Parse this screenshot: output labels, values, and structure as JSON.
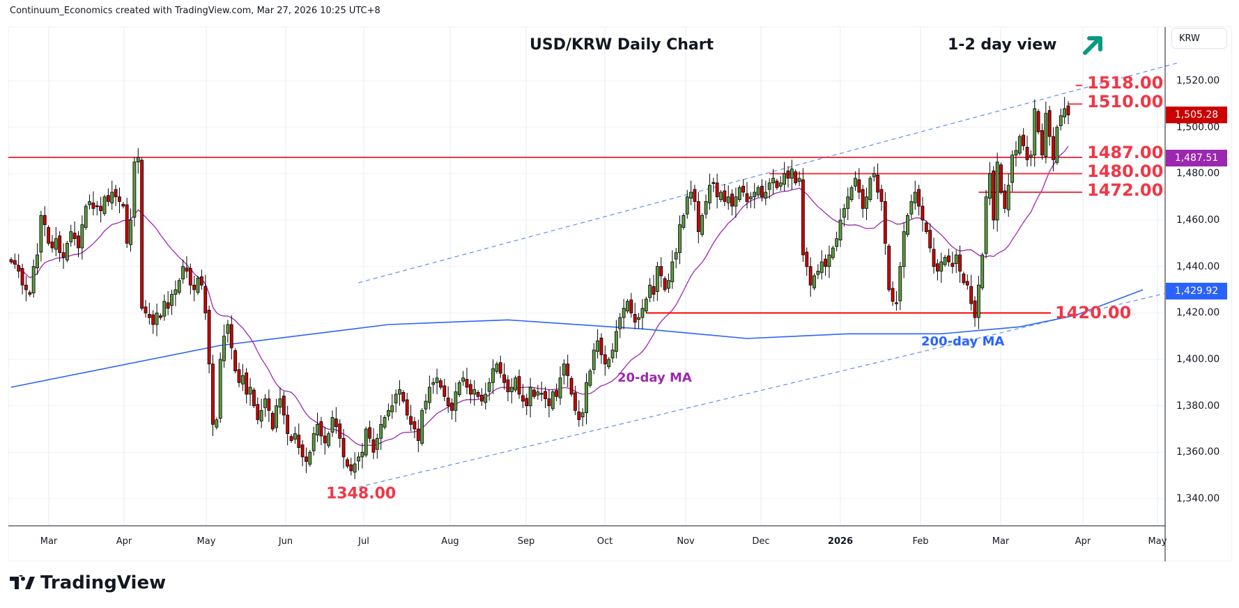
{
  "header": {
    "attribution": "Continuum_Economics created with TradingView.com, Mar 27, 2026 10:25 UTC+8"
  },
  "branding": {
    "logo_text": "TradingView"
  },
  "price_axis": {
    "currency": "KRW"
  },
  "chart_data": {
    "type": "candlestick",
    "title": "USD/KRW Daily Chart",
    "subtitle": "1-2 day view",
    "outlook": "up",
    "ylim": [
      1328,
      1534
    ],
    "y_ticks": [
      "1,520.00",
      "1,500.00",
      "1,480.00",
      "1,460.00",
      "1,440.00",
      "1,420.00",
      "1,400.00",
      "1,380.00",
      "1,360.00",
      "1,340.00"
    ],
    "y_tick_values": [
      1520,
      1500,
      1480,
      1460,
      1440,
      1420,
      1400,
      1380,
      1360,
      1340
    ],
    "x_ticks": [
      "Mar",
      "Apr",
      "May",
      "Jun",
      "Jul",
      "Aug",
      "Sep",
      "Oct",
      "Nov",
      "Dec",
      "2026",
      "Feb",
      "Mar",
      "Apr",
      "May"
    ],
    "closes": [
      1442,
      1441,
      1438,
      1432,
      1430,
      1428,
      1440,
      1445,
      1462,
      1458,
      1450,
      1448,
      1452,
      1446,
      1444,
      1450,
      1455,
      1452,
      1448,
      1458,
      1466,
      1468,
      1465,
      1466,
      1464,
      1470,
      1468,
      1472,
      1470,
      1468,
      1466,
      1450,
      1460,
      1485,
      1487,
      1422,
      1420,
      1418,
      1415,
      1420,
      1418,
      1425,
      1422,
      1428,
      1430,
      1434,
      1440,
      1438,
      1432,
      1430,
      1435,
      1432,
      1420,
      1398,
      1372,
      1374,
      1400,
      1410,
      1415,
      1405,
      1395,
      1390,
      1393,
      1385,
      1388,
      1380,
      1374,
      1378,
      1383,
      1378,
      1370,
      1380,
      1383,
      1376,
      1368,
      1365,
      1368,
      1362,
      1358,
      1356,
      1360,
      1368,
      1372,
      1367,
      1364,
      1368,
      1375,
      1371,
      1366,
      1358,
      1354,
      1352,
      1355,
      1358,
      1360,
      1370,
      1366,
      1360,
      1366,
      1372,
      1375,
      1378,
      1380,
      1385,
      1387,
      1382,
      1376,
      1372,
      1370,
      1365,
      1378,
      1382,
      1388,
      1390,
      1392,
      1388,
      1384,
      1380,
      1378,
      1386,
      1390,
      1392,
      1388,
      1385,
      1387,
      1384,
      1382,
      1385,
      1390,
      1396,
      1398,
      1394,
      1390,
      1386,
      1388,
      1392,
      1385,
      1382,
      1380,
      1388,
      1384,
      1386,
      1385,
      1383,
      1380,
      1386,
      1384,
      1392,
      1398,
      1393,
      1385,
      1378,
      1374,
      1377,
      1390,
      1395,
      1404,
      1408,
      1402,
      1398,
      1400,
      1404,
      1412,
      1418,
      1422,
      1425,
      1420,
      1416,
      1418,
      1422,
      1426,
      1432,
      1428,
      1440,
      1436,
      1430,
      1434,
      1442,
      1446,
      1458,
      1462,
      1470,
      1472,
      1468,
      1455,
      1462,
      1468,
      1475,
      1476,
      1470,
      1472,
      1468,
      1470,
      1466,
      1470,
      1474,
      1472,
      1468,
      1470,
      1472,
      1474,
      1470,
      1472,
      1476,
      1478,
      1474,
      1476,
      1480,
      1478,
      1482,
      1476,
      1478,
      1445,
      1440,
      1432,
      1436,
      1438,
      1442,
      1440,
      1445,
      1448,
      1452,
      1460,
      1465,
      1470,
      1474,
      1478,
      1472,
      1465,
      1470,
      1478,
      1480,
      1472,
      1468,
      1450,
      1430,
      1425,
      1424,
      1440,
      1455,
      1462,
      1468,
      1472,
      1466,
      1460,
      1455,
      1448,
      1440,
      1438,
      1442,
      1444,
      1442,
      1440,
      1445,
      1438,
      1433,
      1432,
      1424,
      1418,
      1432,
      1445,
      1470,
      1480,
      1460,
      1485,
      1472,
      1465,
      1475,
      1488,
      1490,
      1496,
      1492,
      1486,
      1488,
      1508,
      1498,
      1488,
      1506,
      1496,
      1486,
      1500,
      1505,
      1508,
      1505.28
    ],
    "ma20": {
      "label": "20-day MA",
      "color": "#9c27b0",
      "last": "1,487.51"
    },
    "ma200": {
      "label": "200-day MA",
      "color": "#2962ff",
      "last": "1,429.92",
      "points": [
        [
          0,
          1388
        ],
        [
          56,
          1406
        ],
        [
          101,
          1415
        ],
        [
          133,
          1417
        ],
        [
          170,
          1413
        ],
        [
          197,
          1409
        ],
        [
          224,
          1411
        ],
        [
          249,
          1411
        ],
        [
          270,
          1414
        ],
        [
          285,
          1419
        ],
        [
          303,
          1430
        ]
      ]
    },
    "last_price": {
      "label": "1,505.28",
      "color": "#cc0000"
    },
    "levels": [
      {
        "value": 1518,
        "label": "1518.00",
        "from_bar": 285
      },
      {
        "value": 1510,
        "label": "1510.00",
        "from_bar": 283
      },
      {
        "value": 1487,
        "label": "1487.00",
        "from_bar": 0
      },
      {
        "value": 1480,
        "label": "1480.00",
        "from_bar": 203
      },
      {
        "value": 1472,
        "label": "1472.00",
        "from_bar": 259
      },
      {
        "value": 1420,
        "label": "1420.00",
        "from_bar": 170
      }
    ],
    "low_annotation": {
      "value": 1348,
      "label": "1348.00"
    },
    "channel": {
      "upper": [
        [
          93,
          1433
        ],
        [
          313,
          1528
        ]
      ],
      "lower": [
        [
          93,
          1345
        ],
        [
          313,
          1430
        ]
      ]
    },
    "colors": {
      "up": "#5b9a3f",
      "down": "#cc0000",
      "level": "#f23645",
      "arrow": "#089981"
    }
  }
}
